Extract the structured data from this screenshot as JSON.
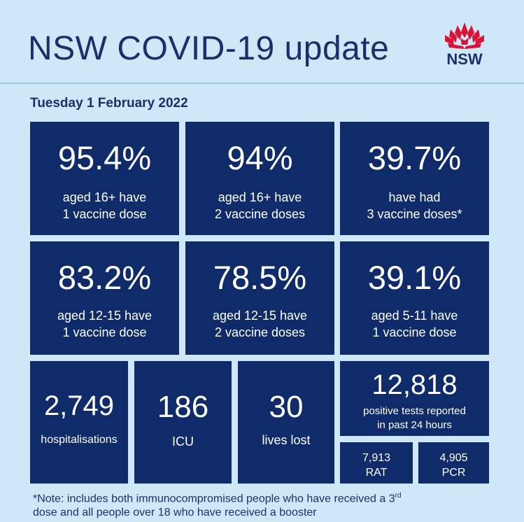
{
  "header": {
    "title": "NSW COVID-19 update",
    "logo_text": "NSW"
  },
  "date": "Tuesday 1 February 2022",
  "vaccine_tiles": [
    {
      "value": "95.4%",
      "line1": "aged 16+ have",
      "line2": "1 vaccine dose"
    },
    {
      "value": "94%",
      "line1": "aged 16+ have",
      "line2": "2 vaccine doses"
    },
    {
      "value": "39.7%",
      "line1": "have had",
      "line2": "3 vaccine doses*"
    },
    {
      "value": "83.2%",
      "line1": "aged 12-15 have",
      "line2": "1 vaccine dose"
    },
    {
      "value": "78.5%",
      "line1": "aged 12-15 have",
      "line2": "2 vaccine doses"
    },
    {
      "value": "39.1%",
      "line1": "aged 5-11 have",
      "line2": "1 vaccine dose"
    }
  ],
  "stats": {
    "hospitalisations": {
      "value": "2,749",
      "label": "hospitalisations"
    },
    "icu": {
      "value": "186",
      "label": "ICU"
    },
    "deaths": {
      "value": "30",
      "label": "lives lost"
    },
    "positive_tests": {
      "value": "12,818",
      "line1": "positive tests reported",
      "line2": "in past 24 hours"
    },
    "rat": {
      "value": "7,913",
      "label": "RAT"
    },
    "pcr": {
      "value": "4,905",
      "label": "PCR"
    }
  },
  "note": {
    "part1": "*Note: includes both immunocompromised  people who have received a 3",
    "sup": "rd",
    "part2": "dose and all people over 18 who have received a booster"
  },
  "colors": {
    "background": "#cfe8f7",
    "tile": "#0f2b69",
    "title_text": "#1c2f6b",
    "logo_red": "#d7153a"
  }
}
